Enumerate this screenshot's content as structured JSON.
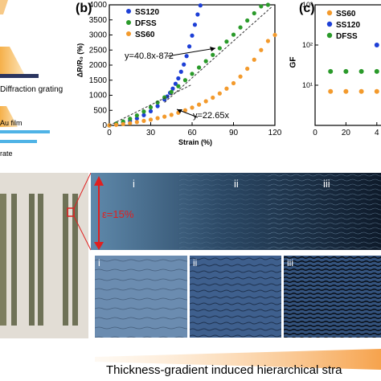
{
  "panel_a": {
    "labels": [
      "Diffraction grating",
      "Au film",
      "rate"
    ]
  },
  "panel_b": {
    "letter": "(b)",
    "title": "",
    "ylabel": "ΔR/R₀ (%)",
    "xlabel": "Strain (%)",
    "legend": [
      "SS120",
      "DFSS",
      "SS60"
    ],
    "annotations": [
      "y=40.8x-872",
      "y=22.65x"
    ]
  },
  "panel_c": {
    "letter": "(c)",
    "ylabel": "GF",
    "legend": [
      "SS60",
      "SS120",
      "DFSS"
    ]
  },
  "panel_d": {
    "strain_label": "ε=15%",
    "regions": [
      "i",
      "ii",
      "iii"
    ],
    "insets": [
      "i",
      "ii",
      "iii"
    ]
  },
  "caption": "Thickness-gradient induced hierarchical stra",
  "colors": {
    "ss120": "#1d3fd6",
    "dfss": "#2a9a2a",
    "ss60": "#f39a2c",
    "arrow": "#e02020"
  },
  "chart_data": [
    {
      "type": "scatter",
      "xlabel": "Strain (%)",
      "ylabel": "ΔR/R₀ (%)",
      "xlim": [
        0,
        120
      ],
      "ylim": [
        0,
        4000
      ],
      "xticks": [
        0,
        30,
        60,
        90,
        120
      ],
      "yticks": [
        0,
        500,
        1000,
        1500,
        2000,
        2500,
        3000,
        3500,
        4000
      ],
      "series": [
        {
          "name": "SS120",
          "color": "#1d3fd6",
          "x": [
            0,
            5,
            10,
            15,
            20,
            25,
            30,
            35,
            40,
            42,
            44,
            46,
            48,
            50,
            52,
            54,
            56,
            58,
            60,
            62,
            64,
            66
          ],
          "y": [
            0,
            40,
            90,
            150,
            230,
            340,
            470,
            640,
            860,
            960,
            1080,
            1220,
            1380,
            1560,
            1780,
            2020,
            2300,
            2620,
            2980,
            3340,
            3680,
            3980
          ]
        },
        {
          "name": "DFSS",
          "color": "#2a9a2a",
          "x": [
            0,
            5,
            10,
            15,
            20,
            25,
            30,
            35,
            40,
            45,
            50,
            55,
            60,
            65,
            70,
            75,
            80,
            85,
            90,
            95,
            100,
            105,
            110,
            115
          ],
          "y": [
            0,
            60,
            130,
            220,
            330,
            460,
            600,
            760,
            930,
            1110,
            1300,
            1500,
            1710,
            1920,
            2130,
            2340,
            2560,
            2780,
            3010,
            3250,
            3480,
            3720,
            3950,
            4000
          ]
        },
        {
          "name": "SS60",
          "color": "#f39a2c",
          "x": [
            0,
            5,
            10,
            15,
            20,
            25,
            30,
            35,
            40,
            45,
            50,
            55,
            60,
            65,
            70,
            75,
            80,
            85,
            90,
            95,
            100,
            105,
            110,
            115,
            120
          ],
          "y": [
            0,
            20,
            45,
            75,
            110,
            150,
            190,
            240,
            290,
            350,
            420,
            500,
            590,
            690,
            800,
            920,
            1060,
            1220,
            1400,
            1620,
            1880,
            2180,
            2500,
            2800,
            3000
          ]
        }
      ]
    },
    {
      "type": "scatter",
      "ylabel": "GF",
      "yscale": "log",
      "ylim": [
        1,
        1000
      ],
      "yticks": [
        1,
        10,
        100,
        1000
      ],
      "ytick_labels": [
        "10¹",
        "10²",
        "10³"
      ],
      "xticks_shown": [
        "0",
        "20",
        "4"
      ],
      "series": [
        {
          "name": "SS60",
          "color": "#f39a2c",
          "x": [
            10,
            20,
            30,
            40
          ],
          "y": [
            7,
            7,
            7,
            7
          ]
        },
        {
          "name": "SS120",
          "color": "#1d3fd6",
          "x": [
            40
          ],
          "y": [
            100
          ]
        },
        {
          "name": "DFSS",
          "color": "#2a9a2a",
          "x": [
            10,
            20,
            30,
            40
          ],
          "y": [
            22,
            22,
            22,
            22
          ]
        }
      ]
    }
  ]
}
